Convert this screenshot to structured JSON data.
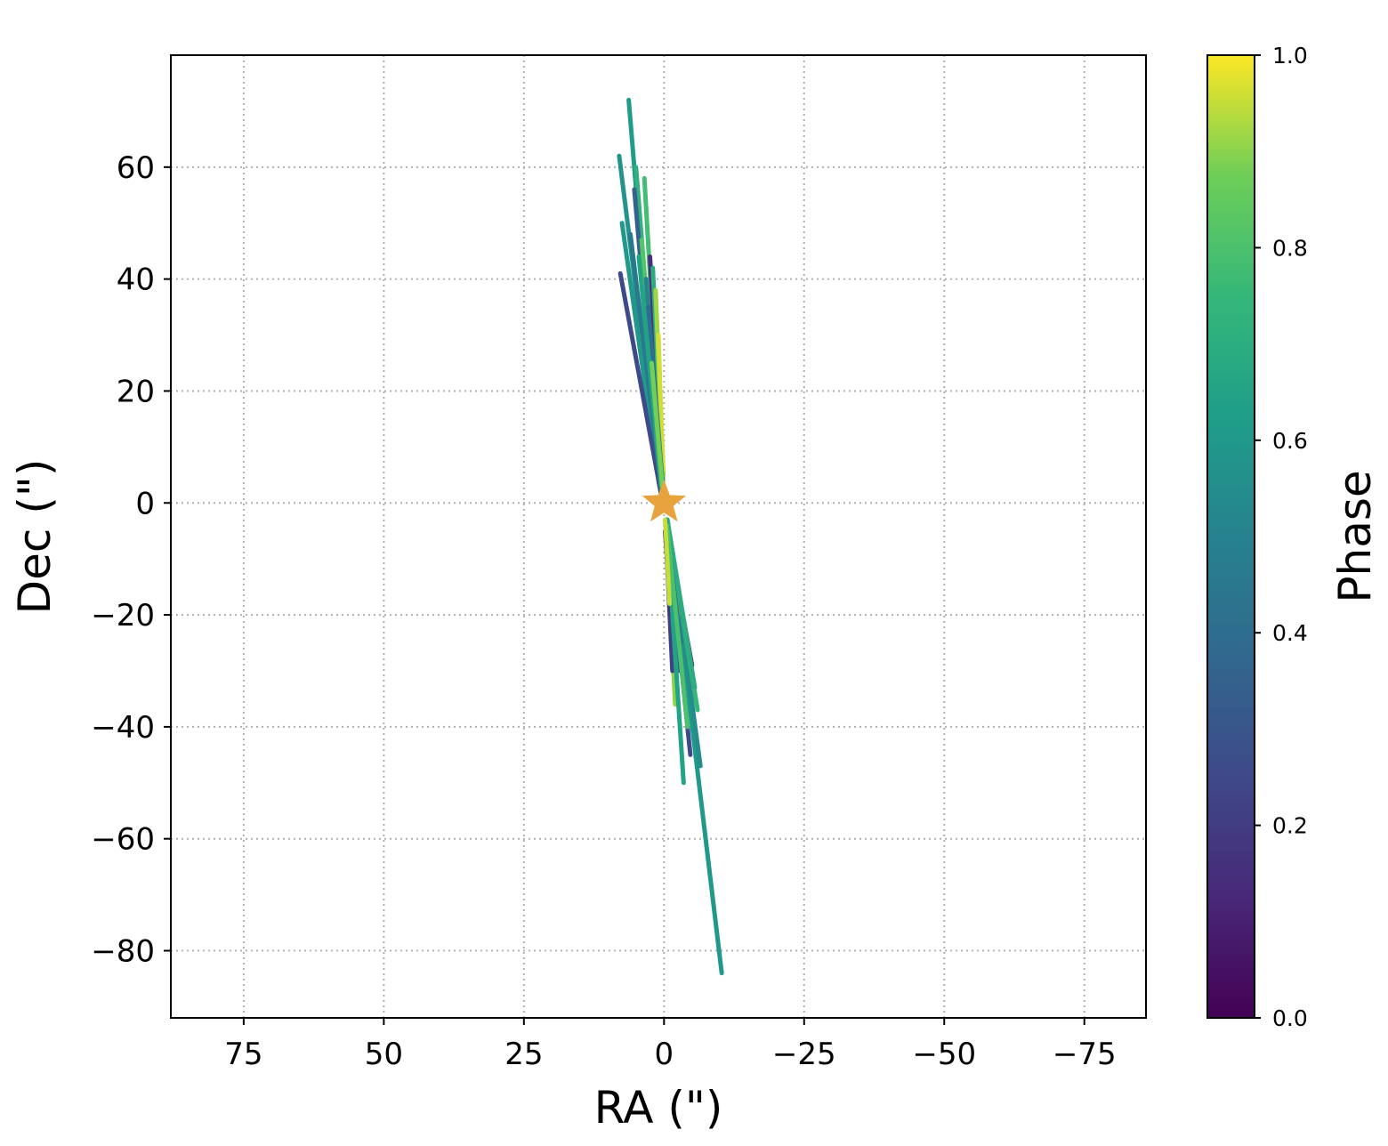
{
  "chart_data": {
    "type": "line",
    "xlabel": "RA (\")",
    "ylabel": "Dec (\")",
    "xlim": [
      88,
      -86
    ],
    "ylim": [
      -92,
      80
    ],
    "x_ticks": [
      75,
      50,
      25,
      0,
      -25,
      -50,
      -75
    ],
    "x_tick_labels": [
      "75",
      "50",
      "25",
      "0",
      "−25",
      "−50",
      "−75"
    ],
    "y_ticks": [
      60,
      40,
      20,
      0,
      -20,
      -40,
      -60,
      -80
    ],
    "y_tick_labels": [
      "60",
      "40",
      "20",
      "0",
      "−20",
      "−40",
      "−60",
      "−80"
    ],
    "grid": true,
    "colorbar": {
      "label": "Phase",
      "colormap": "viridis",
      "range": [
        0.0,
        1.0
      ],
      "ticks": [
        0.0,
        0.2,
        0.4,
        0.6,
        0.8,
        1.0
      ],
      "tick_labels": [
        "0.0",
        "0.2",
        "0.4",
        "0.6",
        "0.8",
        "1.0"
      ]
    },
    "marker": {
      "shape": "star",
      "x": 0,
      "y": 0,
      "color": "#e8a33d"
    },
    "segments": [
      {
        "x": [
          0.5,
          6.3
        ],
        "y": [
          2,
          72
        ],
        "phase": 0.62
      },
      {
        "x": [
          0.5,
          8.0
        ],
        "y": [
          2,
          62
        ],
        "phase": 0.58
      },
      {
        "x": [
          0.3,
          3.5
        ],
        "y": [
          3,
          58
        ],
        "phase": 0.78
      },
      {
        "x": [
          0.4,
          5.0
        ],
        "y": [
          2,
          60
        ],
        "phase": 0.72
      },
      {
        "x": [
          0.8,
          7.5
        ],
        "y": [
          3,
          50
        ],
        "phase": 0.6
      },
      {
        "x": [
          0.6,
          5.3
        ],
        "y": [
          2,
          56
        ],
        "phase": 0.35
      },
      {
        "x": [
          0.6,
          7.8
        ],
        "y": [
          2,
          41
        ],
        "phase": 0.25
      },
      {
        "x": [
          0.2,
          2.5
        ],
        "y": [
          3,
          44
        ],
        "phase": 0.15
      },
      {
        "x": [
          0.2,
          2.0
        ],
        "y": [
          4,
          42
        ],
        "phase": 0.7
      },
      {
        "x": [
          0.3,
          4.0
        ],
        "y": [
          3,
          47
        ],
        "phase": 0.82
      },
      {
        "x": [
          0.4,
          6.0
        ],
        "y": [
          2,
          48
        ],
        "phase": 0.45
      },
      {
        "x": [
          0.1,
          1.5
        ],
        "y": [
          5,
          38
        ],
        "phase": 0.92
      },
      {
        "x": [
          0.5,
          3.2
        ],
        "y": [
          3,
          40
        ],
        "phase": 0.5
      },
      {
        "x": [
          0.2,
          1.0
        ],
        "y": [
          6,
          30
        ],
        "phase": 0.96
      },
      {
        "x": [
          0.3,
          2.8
        ],
        "y": [
          4,
          35
        ],
        "phase": 0.4
      },
      {
        "x": [
          0.4,
          4.5
        ],
        "y": [
          2,
          44
        ],
        "phase": 0.65
      },
      {
        "x": [
          0.3,
          2.2
        ],
        "y": [
          3,
          25
        ],
        "phase": 0.88
      },
      {
        "x": [
          -0.6,
          -10.3
        ],
        "y": [
          -3,
          -84
        ],
        "phase": 0.6
      },
      {
        "x": [
          -0.6,
          -6.5
        ],
        "y": [
          -3,
          -47
        ],
        "phase": 0.55
      },
      {
        "x": [
          -0.5,
          -4.7
        ],
        "y": [
          -4,
          -45
        ],
        "phase": 0.25
      },
      {
        "x": [
          -0.5,
          -6.0
        ],
        "y": [
          -3,
          -37
        ],
        "phase": 0.75
      },
      {
        "x": [
          -0.4,
          -5.0
        ],
        "y": [
          -4,
          -29
        ],
        "phase": 0.2
      },
      {
        "x": [
          -0.3,
          -2.0
        ],
        "y": [
          -4,
          -36
        ],
        "phase": 0.9
      },
      {
        "x": [
          -0.3,
          -1.5
        ],
        "y": [
          -5,
          -30
        ],
        "phase": 0.22
      },
      {
        "x": [
          -0.4,
          -2.8
        ],
        "y": [
          -3,
          -30
        ],
        "phase": 0.3
      },
      {
        "x": [
          -0.6,
          -5.5
        ],
        "y": [
          -3,
          -33
        ],
        "phase": 0.7
      },
      {
        "x": [
          -0.3,
          -2.5
        ],
        "y": [
          -4,
          -20
        ],
        "phase": 0.85
      },
      {
        "x": [
          -0.2,
          -1.2
        ],
        "y": [
          -5,
          -20
        ],
        "phase": 0.15
      },
      {
        "x": [
          -0.4,
          -3.5
        ],
        "y": [
          -3,
          -50
        ],
        "phase": 0.65
      },
      {
        "x": [
          -0.3,
          -3.0
        ],
        "y": [
          -3,
          -25
        ],
        "phase": 0.45
      },
      {
        "x": [
          -0.5,
          -4.2
        ],
        "y": [
          -4,
          -40
        ],
        "phase": 0.8
      },
      {
        "x": [
          -0.2,
          -1.0
        ],
        "y": [
          -3,
          -18
        ],
        "phase": 0.95
      }
    ]
  }
}
